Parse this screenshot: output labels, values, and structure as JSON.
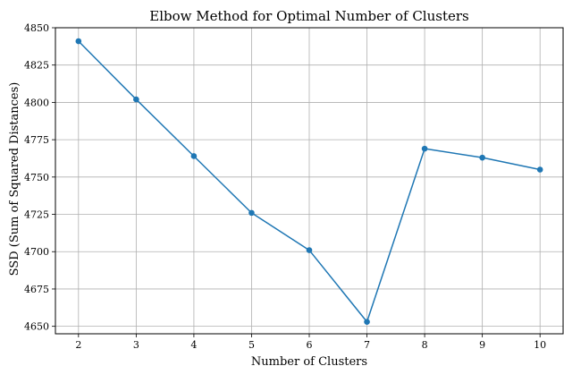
{
  "chart_data": {
    "type": "line",
    "title": "Elbow Method for Optimal Number of Clusters",
    "xlabel": "Number of Clusters",
    "ylabel": "SSD (Sum of Squared Distances)",
    "x": [
      2,
      3,
      4,
      5,
      6,
      7,
      8,
      9,
      10
    ],
    "series": [
      {
        "values": [
          4841,
          4802,
          4764,
          4726,
          4701,
          4653,
          4769,
          4763,
          4755
        ],
        "color": "#1f77b4",
        "marker": "circle"
      }
    ],
    "xticks": [
      "2",
      "3",
      "4",
      "5",
      "6",
      "7",
      "8",
      "9",
      "10"
    ],
    "yticks": [
      "4650",
      "4675",
      "4700",
      "4725",
      "4750",
      "4775",
      "4800",
      "4825",
      "4850"
    ],
    "xlim": [
      1.6,
      10.4
    ],
    "ylim": [
      4645,
      4850
    ],
    "grid": true,
    "legend": false
  }
}
